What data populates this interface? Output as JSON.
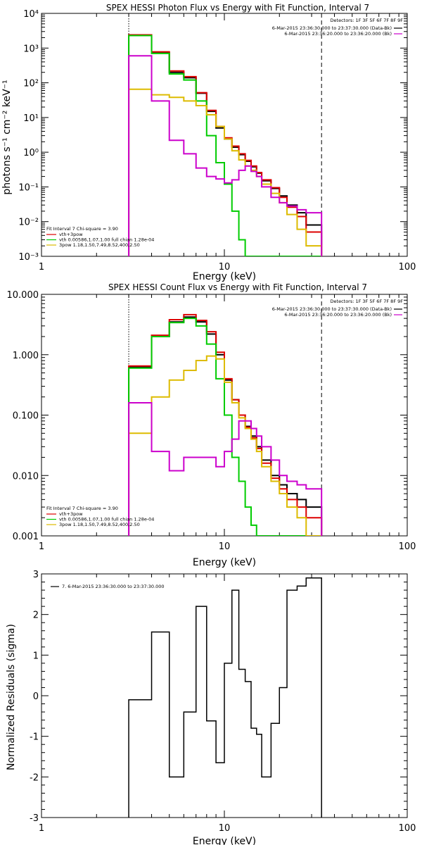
{
  "chart_data": [
    {
      "type": "line",
      "title": "SPEX HESSI Photon Flux vs Energy with Fit Function, Interval 7",
      "xlabel": "Energy (keV)",
      "ylabel": "photons s⁻¹ cm⁻² keV⁻¹",
      "xscale": "log",
      "yscale": "log",
      "xlim": [
        1,
        100
      ],
      "ylim": [
        0.001,
        10000
      ],
      "xticks": [
        {
          "v": 1,
          "label": "1"
        },
        {
          "v": 10,
          "label": "10"
        },
        {
          "v": 100,
          "label": "100"
        }
      ],
      "yticks": [
        {
          "v": 0.001,
          "label": "10⁻³"
        },
        {
          "v": 0.01,
          "label": "10⁻²"
        },
        {
          "v": 0.1,
          "label": "10⁻¹"
        },
        {
          "v": 1,
          "label": "10⁰"
        },
        {
          "v": 10,
          "label": "10¹"
        },
        {
          "v": 100,
          "label": "10²"
        },
        {
          "v": 1000,
          "label": "10³"
        },
        {
          "v": 10000,
          "label": "10⁴"
        }
      ],
      "vlines": [
        {
          "x": 3.0,
          "style": "dotted"
        },
        {
          "x": 34.0,
          "style": "dashed"
        }
      ],
      "detectors": "Detectors: 1F 3F 5F 6F 7F 8F 9F",
      "legend_top": [
        {
          "label": "6-Mar-2015 23:36:30.000 to 23:37:30.000 (Data-Bk)",
          "color": "#000000"
        },
        {
          "label": "6-Mar-2015 23:36:20.000 to 23:36:20.000 (Bk)",
          "color": "#cc00cc"
        }
      ],
      "legend_bottom_title": "Fit Interval 7   Chi-square = 3.90",
      "legend_bottom": [
        {
          "label": "vth+3pow",
          "color": "#dd0000"
        },
        {
          "label": "vth 0.00586,1.07,1.00  full chian 1.28e-04",
          "color": "#00cc00"
        },
        {
          "label": "3pow 1.18,1.50,7.49,8.52,400,2.50",
          "color": "#ddbb00"
        }
      ],
      "edges": [
        3.0,
        3.5,
        4.0,
        4.5,
        5.0,
        5.5,
        6.0,
        7.0,
        8.0,
        9.0,
        10.0,
        11.0,
        12.0,
        13.0,
        14.0,
        15.0,
        16.0,
        18.0,
        20.0,
        22.0,
        25.0,
        28.0,
        34.0
      ],
      "series": [
        {
          "color": "#000000",
          "values": [
            2300,
            2300,
            750,
            750,
            200,
            200,
            140,
            50,
            15,
            5,
            2.4,
            1.4,
            0.85,
            0.55,
            0.38,
            0.25,
            0.15,
            0.09,
            0.055,
            0.03,
            0.018,
            0.008
          ]
        },
        {
          "color": "#dd0000",
          "values": [
            2400,
            2400,
            780,
            780,
            220,
            220,
            150,
            52,
            16,
            5.5,
            2.6,
            1.5,
            0.9,
            0.58,
            0.4,
            0.26,
            0.16,
            0.095,
            0.05,
            0.026,
            0.014,
            0.005
          ]
        },
        {
          "color": "#00cc00",
          "values": [
            2300,
            2300,
            700,
            700,
            180,
            180,
            120,
            30,
            3.0,
            0.5,
            0.12,
            0.02,
            0.003,
            0.001,
            0.001,
            0.001,
            0.001,
            0.001,
            0.001,
            0.001,
            0.001,
            0.001
          ]
        },
        {
          "color": "#ddbb00",
          "values": [
            65,
            65,
            45,
            45,
            38,
            38,
            30,
            22,
            12,
            5.5,
            2.4,
            1.1,
            0.6,
            0.4,
            0.3,
            0.2,
            0.12,
            0.065,
            0.035,
            0.016,
            0.006,
            0.002
          ]
        },
        {
          "color": "#cc00cc",
          "values": [
            600,
            600,
            30,
            30,
            2.2,
            2.2,
            0.9,
            0.35,
            0.2,
            0.17,
            0.13,
            0.16,
            0.3,
            0.4,
            0.28,
            0.2,
            0.1,
            0.05,
            0.035,
            0.028,
            0.022,
            0.018
          ]
        }
      ]
    },
    {
      "type": "line",
      "title": "SPEX HESSI Count Flux vs Energy with Fit Function, Interval 7",
      "xlabel": "Energy (keV)",
      "ylabel": "",
      "xscale": "log",
      "yscale": "log",
      "xlim": [
        1,
        100
      ],
      "ylim": [
        0.001,
        10
      ],
      "xticks": [
        {
          "v": 1,
          "label": "1"
        },
        {
          "v": 10,
          "label": "10"
        },
        {
          "v": 100,
          "label": "100"
        }
      ],
      "yticks": [
        {
          "v": 0.001,
          "label": "0.001"
        },
        {
          "v": 0.01,
          "label": "0.010"
        },
        {
          "v": 0.1,
          "label": "0.100"
        },
        {
          "v": 1,
          "label": "1.000"
        },
        {
          "v": 10,
          "label": "10.000"
        }
      ],
      "vlines": [
        {
          "x": 3.0,
          "style": "dotted"
        },
        {
          "x": 34.0,
          "style": "dashed"
        }
      ],
      "detectors": "Detectors: 1F 3F 5F 6F 7F 8F 9F",
      "legend_top": [
        {
          "label": "6-Mar-2015 23:36:30.000 to 23:37:30.000 (Data-Bk)",
          "color": "#000000"
        },
        {
          "label": "6-Mar-2015 23:36:20.000 to 23:36:20.000 (Bk)",
          "color": "#cc00cc"
        }
      ],
      "legend_bottom_title": "Fit Interval 7   Chi-square = 3.90",
      "legend_bottom": [
        {
          "label": "vth+3pow",
          "color": "#dd0000"
        },
        {
          "label": "vth 0.00586,1.07,1.00  full chian 1.28e-04",
          "color": "#00cc00"
        },
        {
          "label": "3pow 1.18,1.50,7.49,8.52,400,2.50",
          "color": "#ddbb00"
        }
      ],
      "edges": [
        3.0,
        3.5,
        4.0,
        4.5,
        5.0,
        5.5,
        6.0,
        7.0,
        8.0,
        9.0,
        10.0,
        11.0,
        12.0,
        13.0,
        14.0,
        15.0,
        16.0,
        18.0,
        20.0,
        22.0,
        25.0,
        28.0,
        34.0
      ],
      "series": [
        {
          "color": "#000000",
          "values": [
            0.62,
            0.62,
            2.0,
            2.0,
            3.5,
            3.5,
            4.2,
            3.5,
            2.2,
            1.0,
            0.38,
            0.18,
            0.1,
            0.065,
            0.045,
            0.03,
            0.018,
            0.01,
            0.007,
            0.005,
            0.004,
            0.003
          ]
        },
        {
          "color": "#dd0000",
          "values": [
            0.65,
            0.65,
            2.1,
            2.1,
            3.8,
            3.8,
            4.6,
            3.7,
            2.4,
            1.1,
            0.4,
            0.18,
            0.1,
            0.063,
            0.042,
            0.028,
            0.016,
            0.009,
            0.006,
            0.004,
            0.003,
            0.002
          ]
        },
        {
          "color": "#00cc00",
          "values": [
            0.6,
            0.6,
            2.0,
            2.0,
            3.4,
            3.4,
            4.0,
            3.0,
            1.5,
            0.4,
            0.1,
            0.02,
            0.008,
            0.003,
            0.0015,
            0.001,
            0.001,
            0.001,
            0.001,
            0.001,
            0.001,
            0.001
          ]
        },
        {
          "color": "#ddbb00",
          "values": [
            0.05,
            0.05,
            0.2,
            0.2,
            0.38,
            0.38,
            0.55,
            0.8,
            0.95,
            0.85,
            0.35,
            0.16,
            0.09,
            0.06,
            0.04,
            0.025,
            0.014,
            0.008,
            0.005,
            0.003,
            0.002,
            0.001
          ]
        },
        {
          "color": "#cc00cc",
          "values": [
            0.16,
            0.16,
            0.025,
            0.025,
            0.012,
            0.012,
            0.02,
            0.02,
            0.02,
            0.014,
            0.025,
            0.04,
            0.08,
            0.08,
            0.06,
            0.045,
            0.03,
            0.018,
            0.01,
            0.008,
            0.007,
            0.006
          ]
        }
      ]
    },
    {
      "type": "line",
      "title": "",
      "xlabel": "Energy (keV)",
      "ylabel": "Normalized Residuals (sigma)",
      "xscale": "log",
      "yscale": "linear",
      "xlim": [
        1,
        100
      ],
      "ylim": [
        -3,
        3
      ],
      "xticks": [
        {
          "v": 1,
          "label": "1"
        },
        {
          "v": 10,
          "label": "10"
        },
        {
          "v": 100,
          "label": "100"
        }
      ],
      "yticks": [
        {
          "v": -3,
          "label": "-3"
        },
        {
          "v": -2,
          "label": "-2"
        },
        {
          "v": -1,
          "label": "-1"
        },
        {
          "v": 0,
          "label": "0"
        },
        {
          "v": 1,
          "label": "1"
        },
        {
          "v": 2,
          "label": "2"
        },
        {
          "v": 3,
          "label": "3"
        }
      ],
      "legend_top_left": [
        {
          "label": "7.  6-Mar-2015 23:36:30.000 to 23:37:30.000",
          "color": "#000000"
        }
      ],
      "edges": [
        3.0,
        3.5,
        4.0,
        4.5,
        5.0,
        5.5,
        6.0,
        7.0,
        8.0,
        9.0,
        10.0,
        11.0,
        12.0,
        13.0,
        14.0,
        15.0,
        16.0,
        18.0,
        20.0,
        22.0,
        25.0,
        28.0,
        31.0,
        34.0
      ],
      "series": [
        {
          "color": "#000000",
          "values": [
            -0.1,
            -0.1,
            1.57,
            1.57,
            -2.0,
            -2.0,
            -0.4,
            2.2,
            -0.62,
            -1.65,
            0.8,
            2.6,
            0.65,
            0.35,
            -0.8,
            -0.95,
            -2.0,
            -0.68,
            0.2,
            2.6,
            2.7,
            2.9,
            2.9
          ]
        }
      ]
    }
  ]
}
